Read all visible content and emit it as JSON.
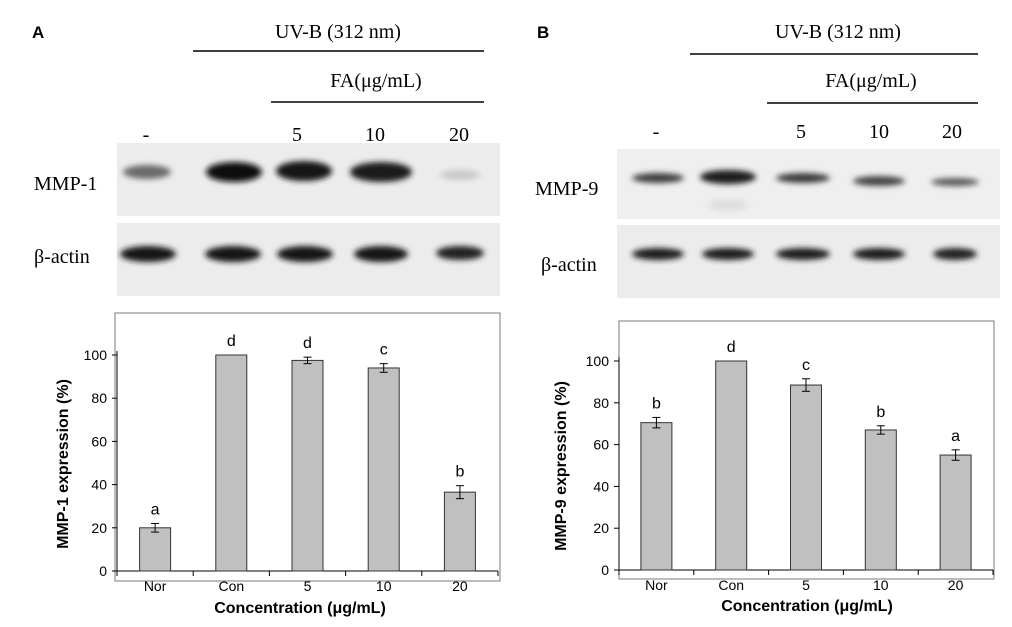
{
  "panels": [
    {
      "letter": "A",
      "treatment_label": "UV-B (312 nm)",
      "fa_label": "FA(μg/mL)",
      "lane_labels": [
        "-",
        "",
        "5",
        "10",
        "20"
      ],
      "target_protein": "MMP-1",
      "loading_control": "β-actin"
    },
    {
      "letter": "B",
      "treatment_label": "UV-B (312 nm)",
      "fa_label": "FA(μg/mL)",
      "lane_labels": [
        "-",
        "",
        "5",
        "10",
        "20"
      ],
      "target_protein": "MMP-9",
      "loading_control": "β-actin"
    }
  ],
  "chart_data": [
    {
      "type": "bar",
      "categories": [
        "Nor",
        "Con",
        "5",
        "10",
        "20"
      ],
      "values": [
        20,
        100,
        97.5,
        94,
        36.5
      ],
      "errors": [
        2,
        0,
        1.5,
        2,
        3
      ],
      "letters": [
        "a",
        "d",
        "d",
        "c",
        "b"
      ],
      "xlabel": "Concentration (μg/mL)",
      "ylabel": "MMP-1 expression (%)",
      "ylim": [
        0,
        100
      ],
      "yticks": [
        0,
        20,
        40,
        60,
        80,
        100
      ],
      "bar_color": "#c0c0c0"
    },
    {
      "type": "bar",
      "categories": [
        "Nor",
        "Con",
        "5",
        "10",
        "20"
      ],
      "values": [
        70.5,
        100,
        88.5,
        67,
        55
      ],
      "errors": [
        2.5,
        0,
        3,
        2,
        2.5
      ],
      "letters": [
        "b",
        "d",
        "c",
        "b",
        "a"
      ],
      "xlabel": "Concentration (μg/mL)",
      "ylabel": "MMP-9 expression (%)",
      "ylim": [
        0,
        100
      ],
      "yticks": [
        0,
        20,
        40,
        60,
        80,
        100
      ],
      "bar_color": "#c0c0c0"
    }
  ]
}
